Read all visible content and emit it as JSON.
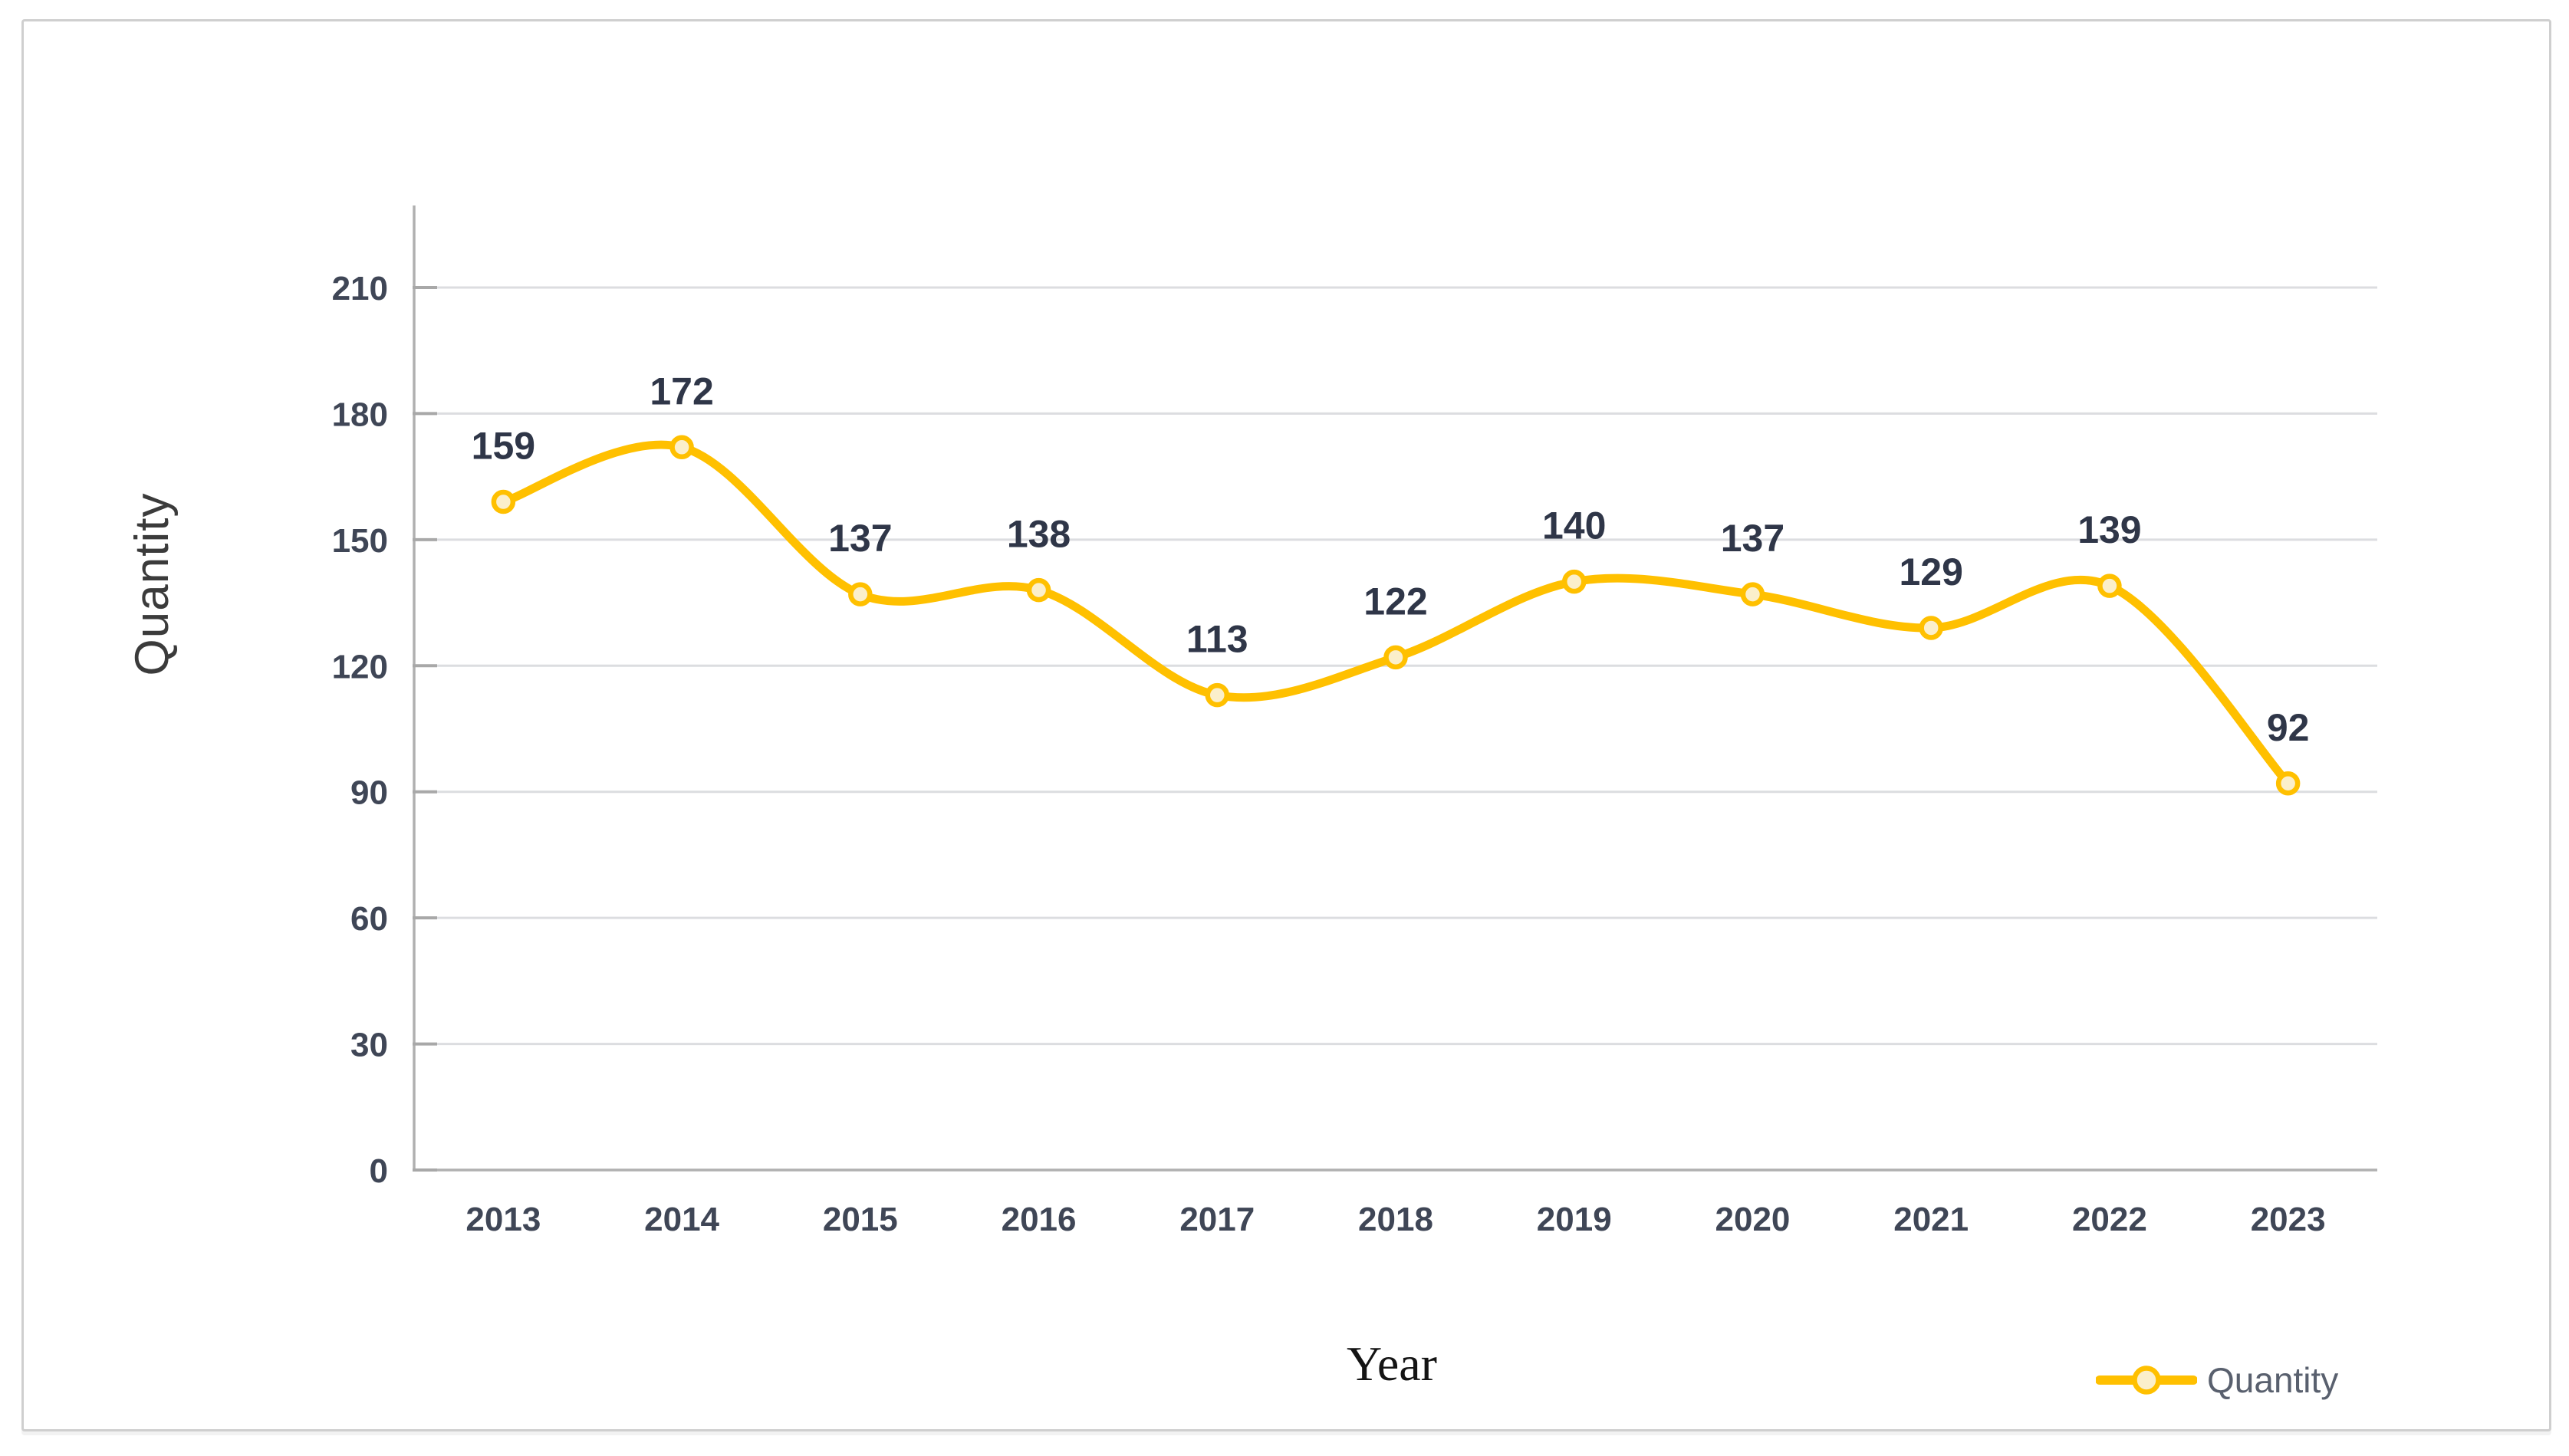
{
  "chart_data": {
    "type": "line",
    "categories": [
      "2013",
      "2014",
      "2015",
      "2016",
      "2017",
      "2018",
      "2019",
      "2020",
      "2021",
      "2022",
      "2023"
    ],
    "series": [
      {
        "name": "Quantity",
        "values": [
          159,
          172,
          137,
          138,
          113,
          122,
          140,
          137,
          129,
          139,
          92
        ]
      }
    ],
    "xlabel": "Year",
    "ylabel": "Quantity",
    "yticks": [
      0,
      30,
      60,
      90,
      120,
      150,
      180,
      210
    ],
    "ylim": [
      0,
      225
    ],
    "grid": true,
    "smooth": true,
    "show_data_labels": true,
    "legend_position": "bottom-right",
    "colors": {
      "line": "#FFC000",
      "marker_fill": "#FBEFCB",
      "marker_stroke": "#FFC000",
      "data_label": "#2f3648",
      "tick_label": "#3f4656",
      "gridline": "#dcdde0",
      "axis_line": "#b0b0b0",
      "tick_mark": "#a8a8a8",
      "legend_text": "#59606e"
    }
  }
}
